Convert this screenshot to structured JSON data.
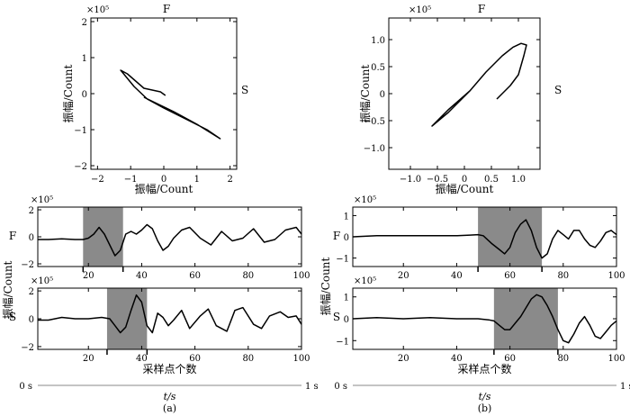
{
  "chart_data": {
    "panels": [
      {
        "id": "a",
        "caption": "(a)",
        "xlabel": "采样点个数",
        "time_axis": {
          "start": "0 s",
          "end": "1 s",
          "label": "t/s"
        },
        "ylabel_traces": "振幅/Count",
        "hodogram": {
          "type": "line",
          "title": "F",
          "right_label": "S",
          "xlabel": "振幅/Count",
          "ylabel": "振幅/Count",
          "scale": "×10⁵",
          "xlim": [
            -2.2,
            2.2
          ],
          "ylim": [
            -2.1,
            2.1
          ],
          "xticks": [
            -2,
            -1,
            0,
            1,
            2
          ],
          "yticks": [
            -2,
            -1,
            0,
            1,
            2
          ],
          "x": [
            -0.6,
            0.3,
            1.0,
            1.7,
            1.3,
            0.7,
            0.0,
            -0.5,
            -0.9,
            -1.3,
            -1.1,
            -0.6,
            -0.1,
            0.05
          ],
          "y": [
            -0.1,
            -0.5,
            -0.85,
            -1.25,
            -1.0,
            -0.72,
            -0.4,
            -0.15,
            0.2,
            0.65,
            0.55,
            0.15,
            0.05,
            -0.05
          ]
        },
        "traces": [
          {
            "type": "line",
            "name": "F",
            "scale": "×10⁵",
            "xlim": [
              1,
              100
            ],
            "ylim": [
              -2.2,
              2.2
            ],
            "xticks": [
              20,
              40,
              60,
              80,
              100
            ],
            "yticks": [
              2,
              0,
              -2
            ],
            "ytick_labels": [
              "2",
              "0",
              "−2"
            ],
            "window": [
              18,
              33
            ],
            "x": [
              1,
              5,
              10,
              15,
              18,
              20,
              22,
              24,
              26,
              28,
              30,
              32,
              34,
              36,
              38,
              40,
              42,
              44,
              46,
              48,
              50,
              52,
              55,
              58,
              62,
              66,
              70,
              74,
              78,
              82,
              86,
              90,
              94,
              98,
              100
            ],
            "y": [
              -0.2,
              -0.2,
              -0.15,
              -0.2,
              -0.2,
              -0.1,
              0.2,
              0.7,
              0.2,
              -0.6,
              -1.4,
              -1.0,
              0.2,
              0.4,
              0.2,
              0.5,
              0.9,
              0.6,
              -0.3,
              -1.0,
              -0.7,
              -0.1,
              0.5,
              0.7,
              -0.1,
              -0.6,
              0.4,
              -0.3,
              -0.1,
              0.6,
              -0.4,
              -0.2,
              0.5,
              0.7,
              0.2
            ]
          },
          {
            "type": "line",
            "name": "S",
            "scale": "×10⁵",
            "xlim": [
              1,
              100
            ],
            "ylim": [
              -2.2,
              2.2
            ],
            "xticks": [
              20,
              40,
              60,
              80,
              100
            ],
            "yticks": [
              2,
              0,
              -2
            ],
            "ytick_labels": [
              "2",
              "0",
              "−2"
            ],
            "window": [
              27,
              42
            ],
            "x": [
              1,
              5,
              10,
              15,
              20,
              25,
              28,
              30,
              32,
              34,
              36,
              38,
              40,
              42,
              44,
              46,
              48,
              50,
              52,
              55,
              58,
              62,
              65,
              68,
              72,
              75,
              78,
              82,
              85,
              88,
              92,
              95,
              98,
              100
            ],
            "y": [
              -0.1,
              -0.1,
              0.1,
              0.0,
              0.0,
              0.1,
              0.0,
              -0.5,
              -1.0,
              -0.6,
              0.6,
              1.7,
              1.2,
              -0.5,
              -1.0,
              0.4,
              0.1,
              -0.5,
              -0.1,
              0.6,
              -0.7,
              0.2,
              0.7,
              -0.5,
              -0.9,
              0.6,
              0.8,
              -0.4,
              -0.7,
              0.2,
              0.5,
              0.1,
              0.2,
              -0.4
            ]
          }
        ]
      },
      {
        "id": "b",
        "caption": "(b)",
        "xlabel": "采样点个数",
        "time_axis": {
          "start": "0 s",
          "end": "1 s",
          "label": "t/s"
        },
        "ylabel_traces": "振幅/Count",
        "hodogram": {
          "type": "line",
          "title": "F",
          "right_label": "S",
          "xlabel": "振幅/Count",
          "ylabel": "振幅/Count",
          "scale": "×10⁵",
          "xlim": [
            -1.4,
            1.4
          ],
          "ylim": [
            -1.4,
            1.4
          ],
          "xticks": [
            -1,
            -0.5,
            0,
            0.5,
            1
          ],
          "xtick_labels": [
            "−1.0",
            "−0.5",
            "0",
            "0.5",
            "1.0"
          ],
          "yticks": [
            1,
            0.5,
            0,
            -0.5,
            -1
          ],
          "ytick_labels": [
            "1.0",
            "0.5",
            "0",
            "−0.5",
            "−1.0"
          ],
          "x": [
            0.1,
            -0.3,
            -0.6,
            -0.3,
            0.1,
            0.4,
            0.7,
            0.9,
            1.05,
            1.15,
            1.1,
            1.0,
            0.85,
            0.7,
            0.6
          ],
          "y": [
            0.05,
            -0.3,
            -0.6,
            -0.35,
            0.05,
            0.4,
            0.7,
            0.86,
            0.93,
            0.9,
            0.7,
            0.35,
            0.15,
            0.0,
            -0.1
          ]
        },
        "traces": [
          {
            "type": "line",
            "name": "F",
            "scale": "×10⁵",
            "xlim": [
              1,
              100
            ],
            "ylim": [
              -1.4,
              1.4
            ],
            "xticks": [
              20,
              40,
              60,
              80,
              100
            ],
            "yticks": [
              1,
              0,
              -1
            ],
            "ytick_labels": [
              "1",
              "0",
              "−1"
            ],
            "window": [
              48,
              72
            ],
            "x": [
              1,
              10,
              20,
              30,
              40,
              45,
              48,
              50,
              53,
              56,
              58,
              60,
              62,
              64,
              66,
              68,
              70,
              72,
              74,
              76,
              78,
              80,
              82,
              84,
              86,
              88,
              90,
              92,
              94,
              96,
              98,
              100
            ],
            "y": [
              0.0,
              0.05,
              0.05,
              0.05,
              0.05,
              0.08,
              0.1,
              0.05,
              -0.3,
              -0.6,
              -0.8,
              -0.5,
              0.2,
              0.6,
              0.8,
              0.3,
              -0.5,
              -1.0,
              -0.8,
              -0.1,
              0.3,
              0.1,
              -0.1,
              0.3,
              0.3,
              -0.1,
              -0.4,
              -0.5,
              -0.2,
              0.2,
              0.3,
              0.1
            ]
          },
          {
            "type": "line",
            "name": "S",
            "scale": "×10⁵",
            "xlim": [
              1,
              100
            ],
            "ylim": [
              -1.4,
              1.4
            ],
            "xticks": [
              20,
              40,
              60,
              80,
              100
            ],
            "yticks": [
              1,
              0,
              -1
            ],
            "ytick_labels": [
              "1",
              "0",
              "−1"
            ],
            "window": [
              54,
              78
            ],
            "x": [
              1,
              10,
              20,
              30,
              40,
              48,
              52,
              54,
              56,
              58,
              60,
              62,
              64,
              66,
              68,
              70,
              72,
              74,
              76,
              78,
              80,
              82,
              84,
              86,
              88,
              90,
              92,
              94,
              96,
              98,
              100
            ],
            "y": [
              0.0,
              0.05,
              0.0,
              0.05,
              0.0,
              0.0,
              -0.05,
              -0.1,
              -0.3,
              -0.5,
              -0.5,
              -0.2,
              0.1,
              0.5,
              0.9,
              1.1,
              1.0,
              0.6,
              0.1,
              -0.5,
              -1.0,
              -1.1,
              -0.7,
              -0.2,
              0.1,
              -0.3,
              -0.8,
              -0.9,
              -0.6,
              -0.3,
              -0.1
            ]
          }
        ]
      }
    ]
  }
}
